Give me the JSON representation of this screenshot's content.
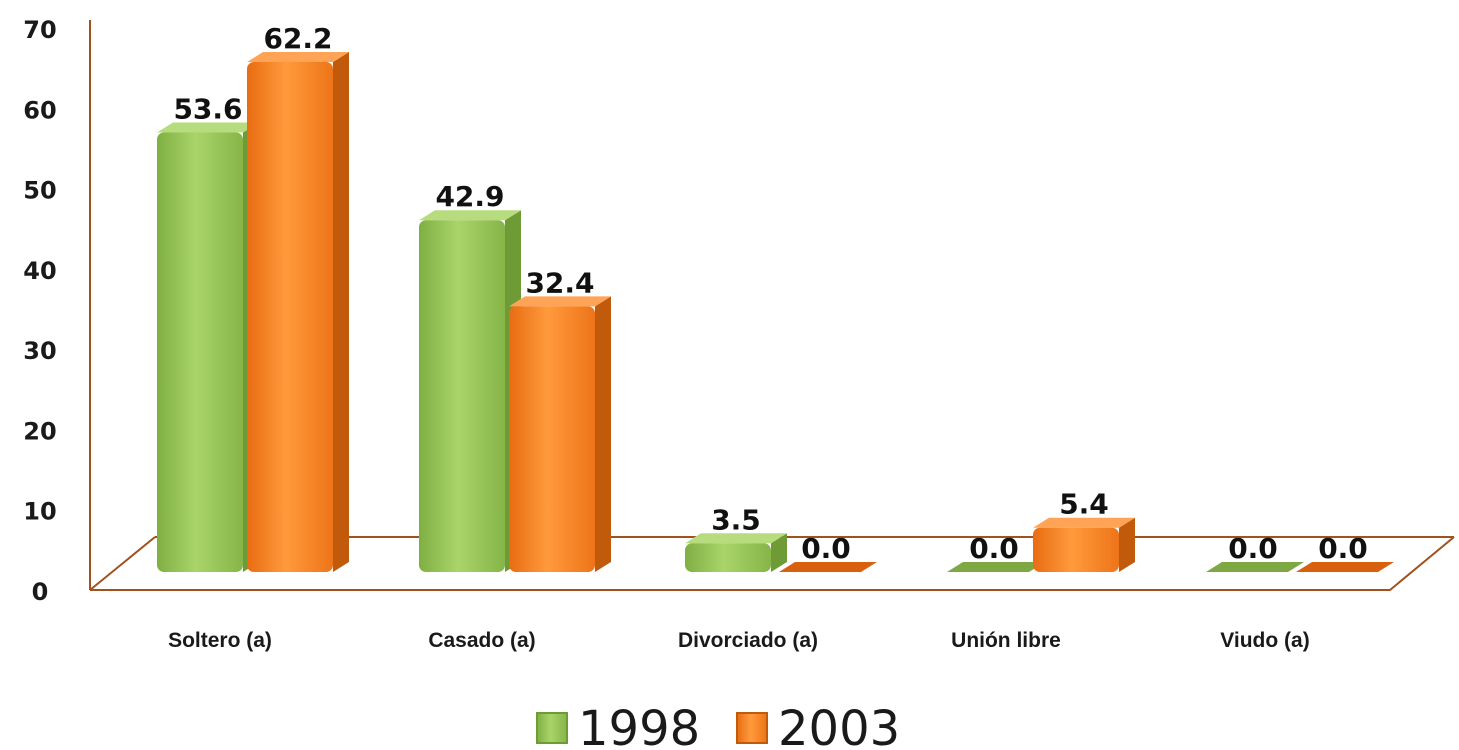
{
  "chart_data": {
    "type": "bar",
    "title": "",
    "xlabel": "",
    "ylabel": "",
    "ylim": [
      0,
      70
    ],
    "yticks": [
      0,
      10,
      20,
      30,
      40,
      50,
      60,
      70
    ],
    "categories": [
      "Soltero (a)",
      "Casado (a)",
      "Divorciado (a)",
      "Unión libre",
      "Viudo (a)"
    ],
    "series": [
      {
        "name": "1998",
        "values": [
          53.6,
          42.9,
          3.5,
          0.0,
          0.0
        ],
        "labels": [
          "53.6",
          "42.9",
          "3.5",
          "0.0",
          "0.0"
        ],
        "color": "#8DBB4E"
      },
      {
        "name": "2003",
        "values": [
          62.2,
          32.4,
          0.0,
          5.4,
          0.0
        ],
        "labels": [
          "62.2",
          "32.4",
          "0.0",
          "5.4",
          "0.0"
        ],
        "color": "#F47A1F"
      }
    ],
    "axis_color": "#A0521E",
    "grid": false,
    "legend_position": "bottom",
    "style": "3d-clustered-column"
  }
}
